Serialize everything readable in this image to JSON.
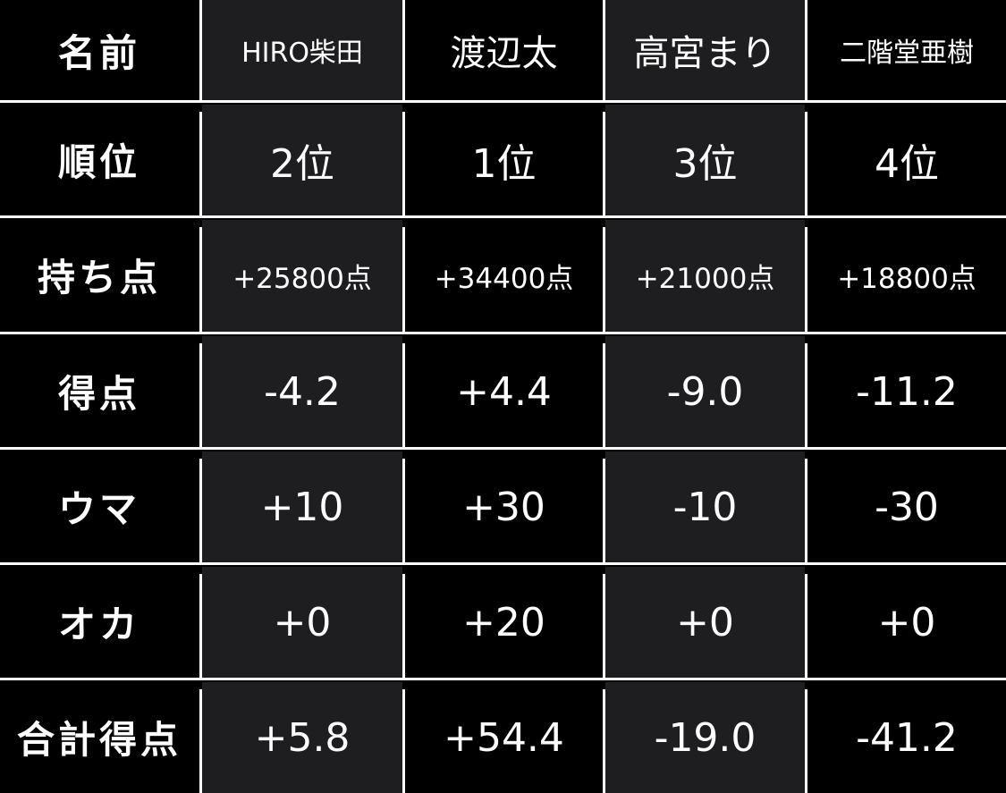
{
  "colors": {
    "background": "#000000",
    "alt_column": "#1e1e20",
    "grid": "#ffffff",
    "text": "#ffffff"
  },
  "table": {
    "rows": [
      {
        "label": "名前",
        "values": [
          "HIRO柴田",
          "渡辺太",
          "高宮まり",
          "二階堂亜樹"
        ]
      },
      {
        "label": "順位",
        "values": [
          "2位",
          "1位",
          "3位",
          "4位"
        ]
      },
      {
        "label": "持ち点",
        "values": [
          "+25800点",
          "+34400点",
          "+21000点",
          "+18800点"
        ]
      },
      {
        "label": "得点",
        "values": [
          "-4.2",
          "+4.4",
          "-9.0",
          "-11.2"
        ]
      },
      {
        "label": "ウマ",
        "values": [
          "+10",
          "+30",
          "-10",
          "-30"
        ]
      },
      {
        "label": "オカ",
        "values": [
          "+0",
          "+20",
          "+0",
          "+0"
        ]
      },
      {
        "label": "合計得点",
        "values": [
          "+5.8",
          "+54.4",
          "-19.0",
          "-41.2"
        ]
      }
    ]
  }
}
